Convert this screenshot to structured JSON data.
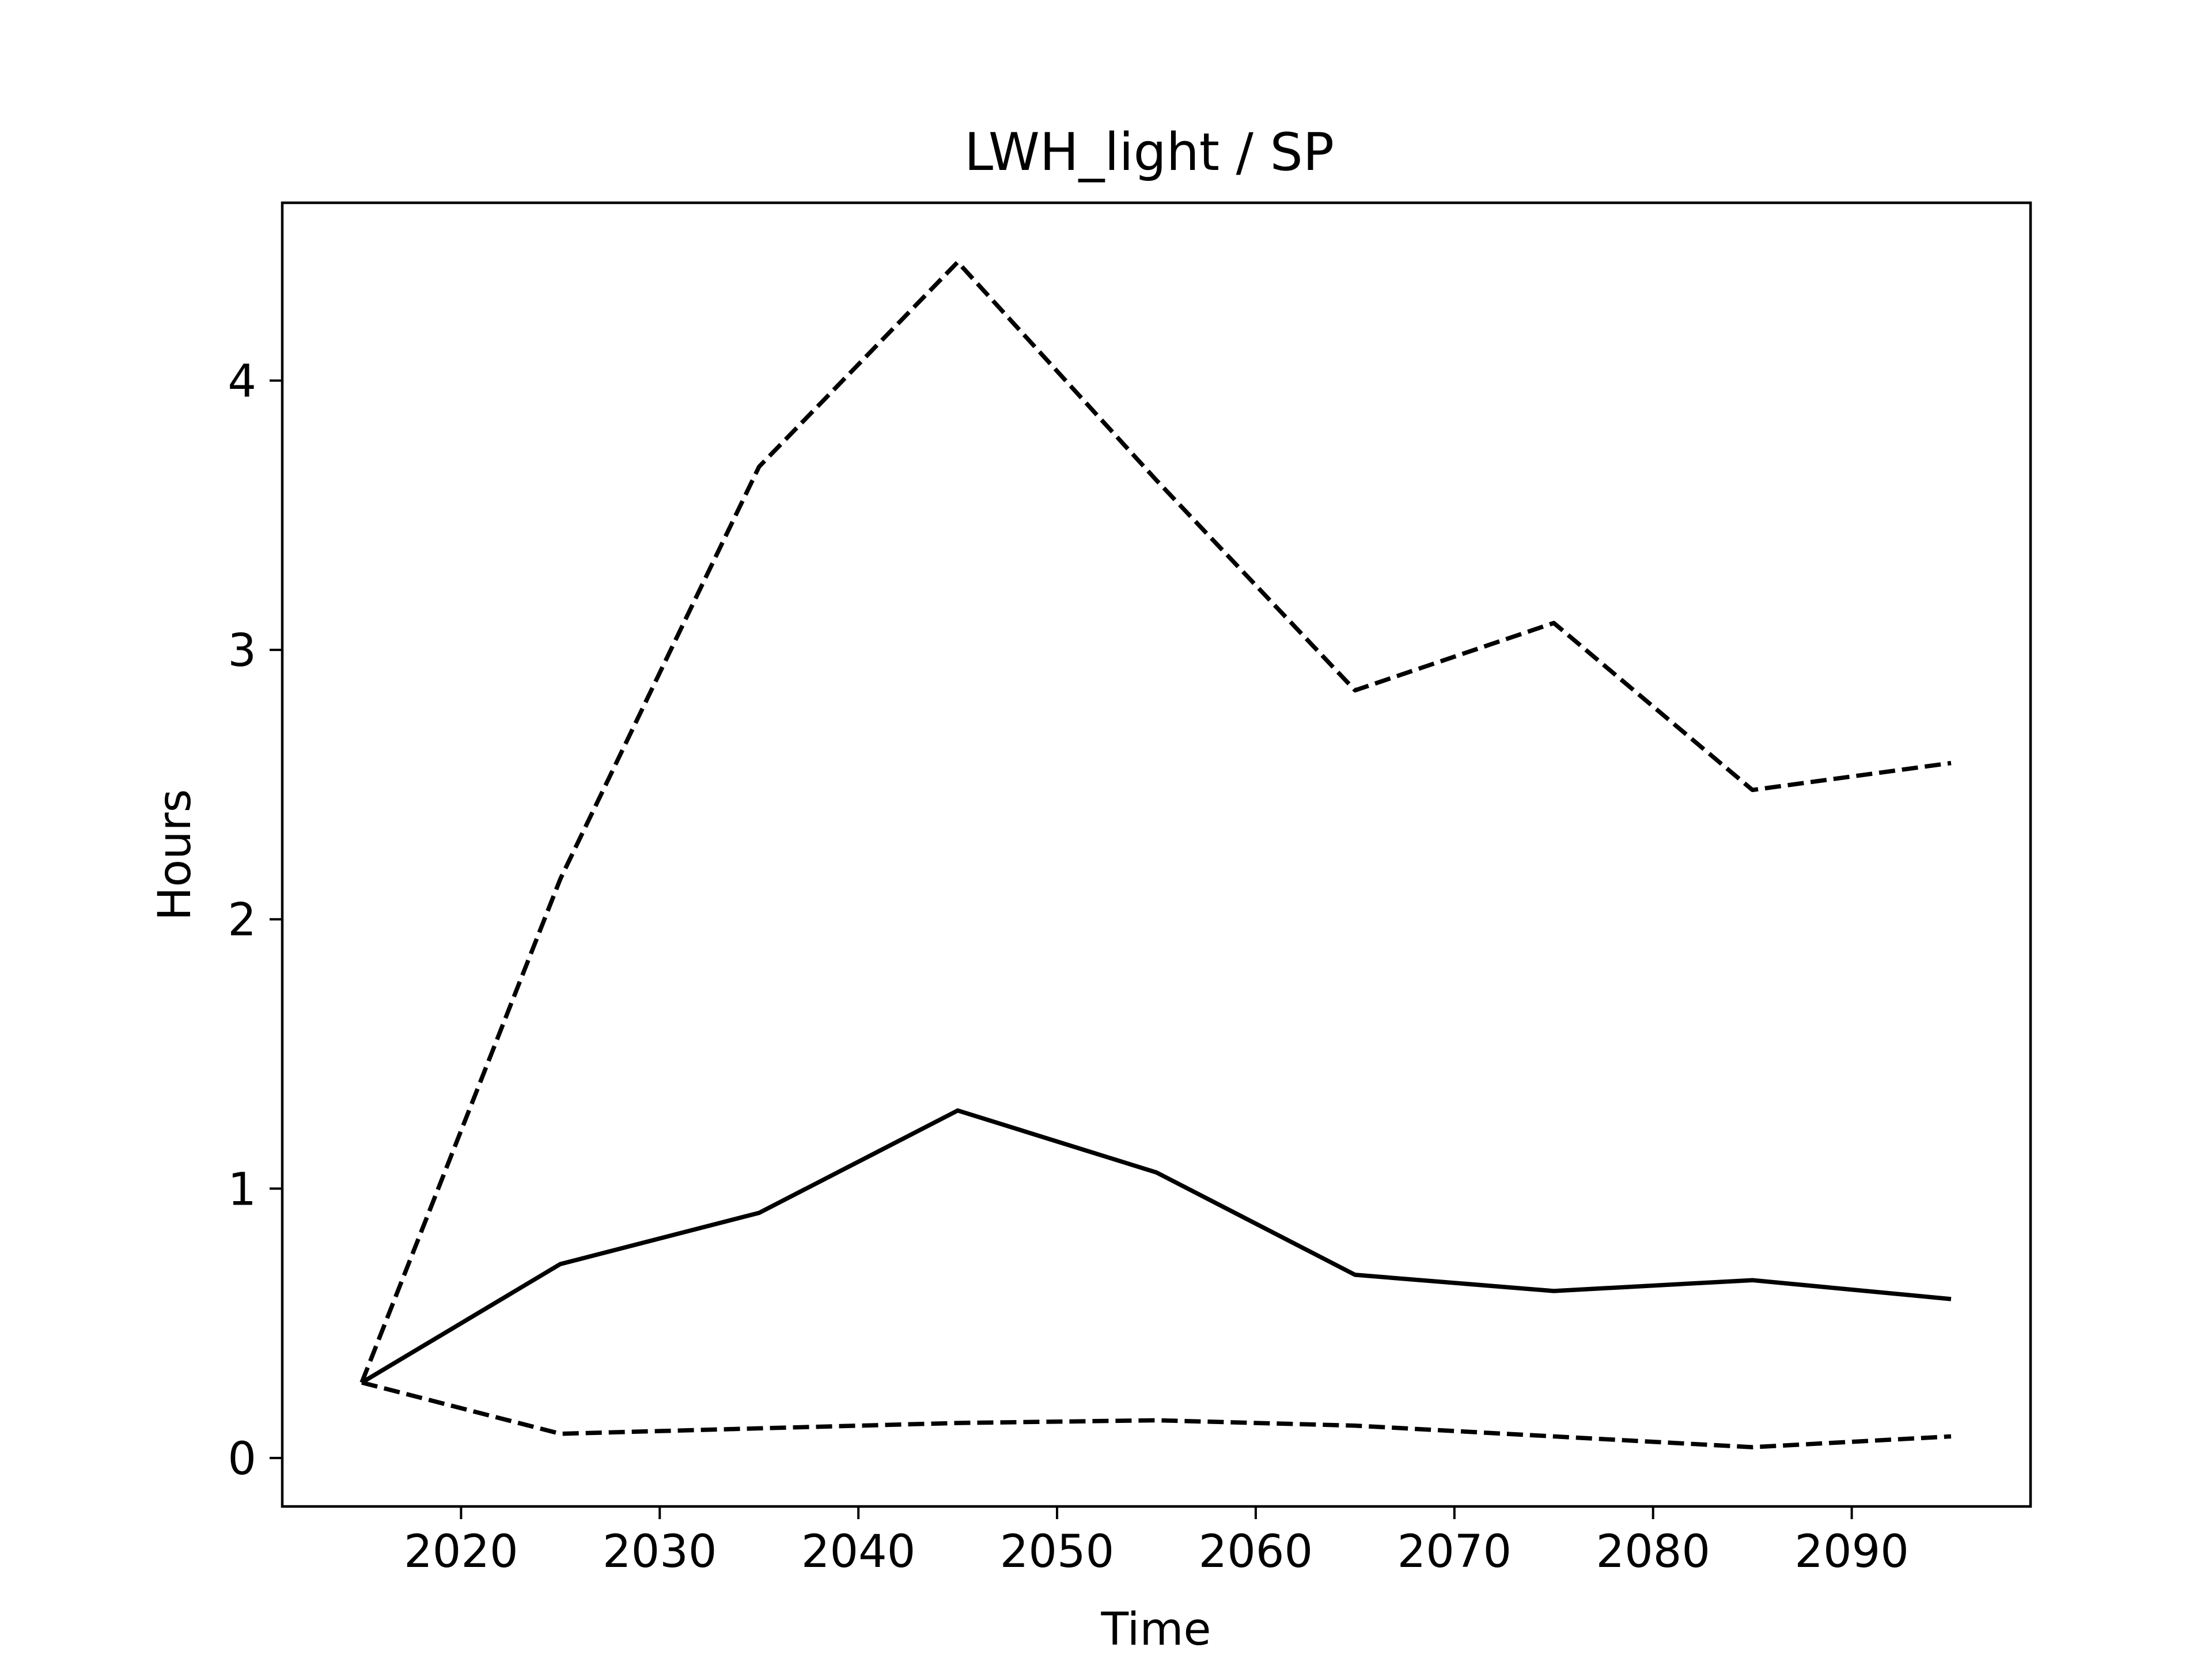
{
  "chart_data": {
    "type": "line",
    "title": "LWH_light / SP",
    "xlabel": "Time",
    "ylabel": "Hours",
    "xlim": [
      2011,
      2099
    ],
    "ylim": [
      -0.18,
      4.66
    ],
    "xticks": [
      2020,
      2030,
      2040,
      2050,
      2060,
      2070,
      2080,
      2090
    ],
    "yticks": [
      0,
      1,
      2,
      3,
      4
    ],
    "grid": false,
    "legend": "none",
    "x": [
      2015,
      2025,
      2035,
      2045,
      2055,
      2065,
      2075,
      2085,
      2095
    ],
    "series": [
      {
        "style": "dashed",
        "color": "#000000",
        "values": [
          0.28,
          2.15,
          3.68,
          4.44,
          3.63,
          2.85,
          3.1,
          2.48,
          2.58
        ]
      },
      {
        "style": "solid",
        "color": "#000000",
        "values": [
          0.28,
          0.72,
          0.91,
          1.29,
          1.06,
          0.68,
          0.62,
          0.66,
          0.59
        ]
      },
      {
        "style": "dashed",
        "color": "#000000",
        "values": [
          0.28,
          0.09,
          0.11,
          0.13,
          0.14,
          0.12,
          0.08,
          0.04,
          0.08
        ]
      }
    ]
  }
}
